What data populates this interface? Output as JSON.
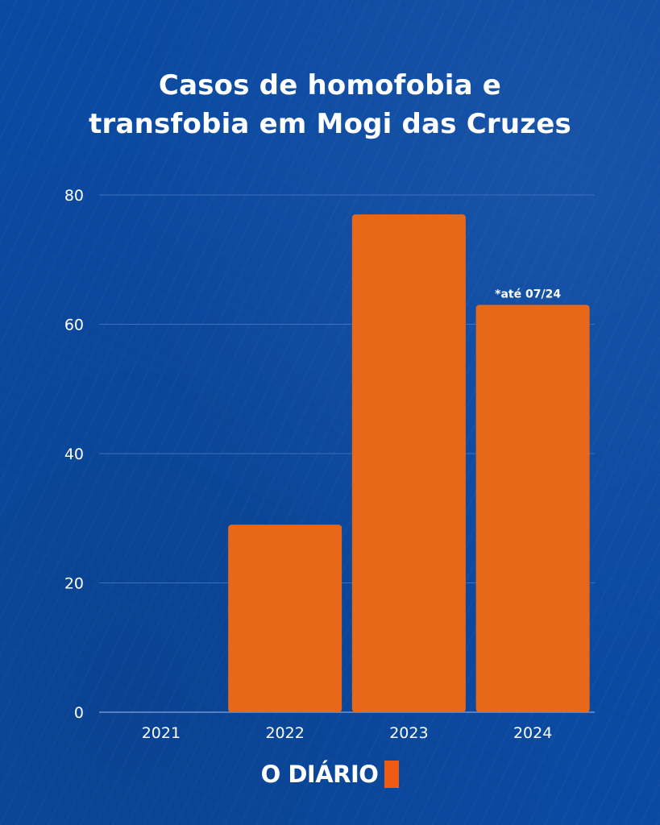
{
  "chart_data": {
    "type": "bar",
    "title_lines": [
      "Casos de homofobia e",
      "transfobia em Mogi das Cruzes"
    ],
    "categories": [
      "2021",
      "2022",
      "2023",
      "2024"
    ],
    "values": [
      0,
      29,
      77,
      63
    ],
    "ylim": [
      0,
      80
    ],
    "yticks": [
      0,
      20,
      40,
      60,
      80
    ],
    "xlabel": "",
    "ylabel": "",
    "grid": true,
    "annotations": [
      {
        "category": "2024",
        "text": "*até 07/24"
      }
    ],
    "colors": {
      "bar": "#e8681a",
      "background": "#0b4aa2",
      "text": "#ffffff",
      "grid": "#3f6fbd"
    }
  },
  "brand": {
    "logo_text": "O DIÁRIO",
    "logo_accent_color": "#f05a12"
  }
}
